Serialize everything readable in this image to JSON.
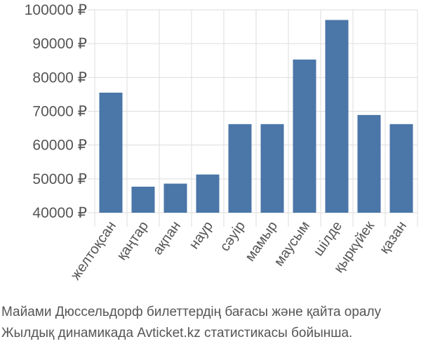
{
  "chart_data": {
    "type": "bar",
    "title": "",
    "xlabel": "",
    "ylabel": "",
    "categories": [
      "желтоқсан",
      "қаңтар",
      "ақпан",
      "наур",
      "сәуір",
      "мамыр",
      "маусым",
      "шілде",
      "қыркүйек",
      "қазан"
    ],
    "values": [
      75500,
      47700,
      48600,
      51300,
      66200,
      66200,
      85300,
      97000,
      68900,
      66200
    ],
    "ylim": [
      40000,
      100000
    ],
    "yticks": [
      40000,
      50000,
      60000,
      70000,
      80000,
      90000,
      100000
    ],
    "ytick_labels": [
      "40000 ₽",
      "50000 ₽",
      "60000 ₽",
      "70000 ₽",
      "80000 ₽",
      "90000 ₽",
      "100000 ₽"
    ],
    "grid": true,
    "bar_color": "#4a76a8"
  },
  "caption": {
    "line1": "Майами Дюссельдорф билеттердің бағасы және қайта оралу",
    "line2": "Жылдық динамикада Avticket.kz статистикасы бойынша."
  }
}
